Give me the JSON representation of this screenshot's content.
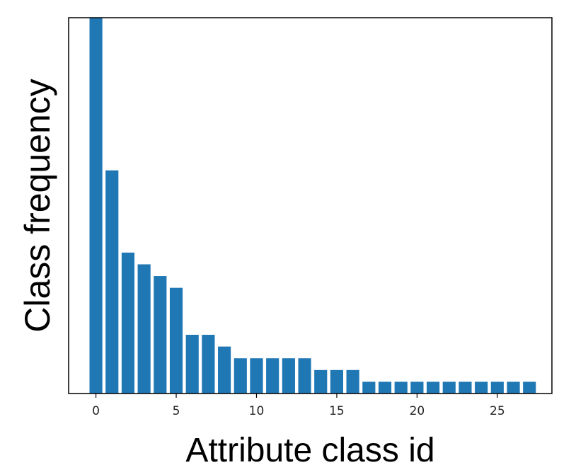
{
  "chart_data": {
    "type": "bar",
    "xlabel": "Attribute class id",
    "ylabel": "Class frequency",
    "x": [
      0,
      1,
      2,
      3,
      4,
      5,
      6,
      7,
      8,
      9,
      10,
      11,
      12,
      13,
      14,
      15,
      16,
      17,
      18,
      19,
      20,
      21,
      22,
      23,
      24,
      25,
      26,
      27
    ],
    "values": [
      32,
      19,
      12,
      11,
      10,
      9,
      5,
      5,
      4,
      3,
      3,
      3,
      3,
      3,
      2,
      2,
      2,
      1,
      1,
      1,
      1,
      1,
      1,
      1,
      1,
      1,
      1,
      1
    ],
    "xticks": [
      0,
      5,
      10,
      15,
      20,
      25
    ],
    "xticks_labels": [
      "0",
      "5",
      "10",
      "15",
      "20",
      "25"
    ],
    "xlim": [
      -1.7,
      28.4
    ],
    "ylim": [
      0,
      32
    ],
    "yticks_shown": false,
    "grid": false,
    "bar_color": "#1f77b4"
  }
}
